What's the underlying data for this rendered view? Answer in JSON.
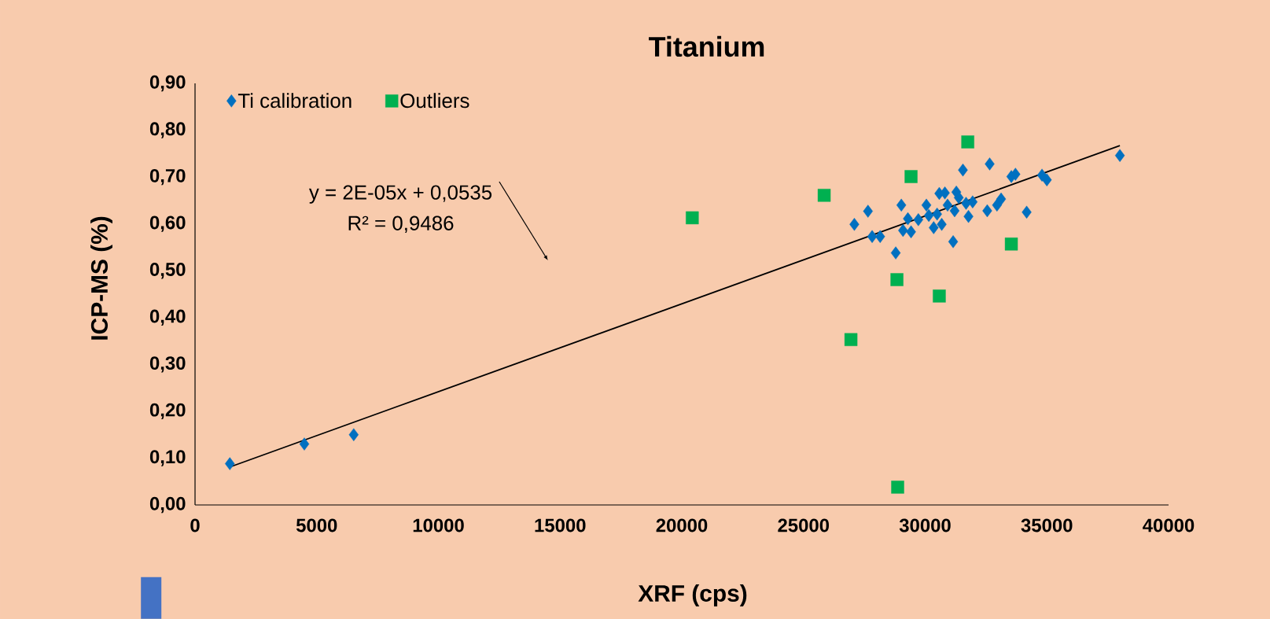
{
  "chart_data": {
    "type": "scatter",
    "title": "Titanium",
    "xlabel": "XRF (cps)",
    "ylabel": "ICP-MS (%)",
    "annotations": [
      "y = 2E-05x + 0,0535",
      "R² = 0,9486"
    ],
    "xlim": [
      0,
      40000
    ],
    "xticks": [
      0,
      5000,
      10000,
      15000,
      20000,
      25000,
      30000,
      35000,
      40000
    ],
    "ylim": [
      0,
      0.9
    ],
    "yticks": [
      {
        "value": 0,
        "label": "0,00"
      },
      {
        "value": 0.1,
        "label": "0,10"
      },
      {
        "value": 0.2,
        "label": "0,20"
      },
      {
        "value": 0.3,
        "label": "0,30"
      },
      {
        "value": 0.4,
        "label": "0,40"
      },
      {
        "value": 0.5,
        "label": "0,50"
      },
      {
        "value": 0.6,
        "label": "0,60"
      },
      {
        "value": 0.7,
        "label": "0,70"
      },
      {
        "value": 0.8,
        "label": "0,80"
      },
      {
        "value": 0.9,
        "label": "0,90"
      }
    ],
    "legend": "top left",
    "series": [
      {
        "name": "Ti calibration",
        "color": "#0070c0",
        "marker": "diamond",
        "x": [
          1430,
          4490,
          6520,
          27090,
          27650,
          27820,
          28150,
          28790,
          29020,
          29090,
          29290,
          29420,
          29720,
          30050,
          30150,
          30350,
          30490,
          30580,
          30680,
          30810,
          30920,
          31150,
          31210,
          31280,
          31380,
          31550,
          31680,
          31780,
          31950,
          32550,
          32650,
          32950,
          33120,
          33540,
          33710,
          34170,
          34800,
          35000,
          38000
        ],
        "values": [
          0.088,
          0.13,
          0.15,
          0.599,
          0.627,
          0.573,
          0.573,
          0.538,
          0.64,
          0.586,
          0.611,
          0.583,
          0.609,
          0.64,
          0.618,
          0.592,
          0.621,
          0.665,
          0.599,
          0.666,
          0.64,
          0.562,
          0.628,
          0.668,
          0.656,
          0.715,
          0.644,
          0.616,
          0.647,
          0.628,
          0.728,
          0.64,
          0.653,
          0.701,
          0.706,
          0.625,
          0.704,
          0.694,
          0.746
        ]
      },
      {
        "name": "Outliers",
        "color": "#00b050",
        "marker": "square",
        "x": [
          20430,
          25850,
          26950,
          28840,
          29420,
          30580,
          31750,
          33540,
          28870
        ],
        "values": [
          0.613,
          0.661,
          0.353,
          0.481,
          0.701,
          0.446,
          0.775,
          0.557,
          0.038
        ]
      },
      {
        "type": "line",
        "color": "#000000",
        "marker": "none",
        "line_style": "solid",
        "x": [
          1430,
          38000
        ],
        "values": [
          0.081,
          0.767
        ]
      }
    ]
  }
}
